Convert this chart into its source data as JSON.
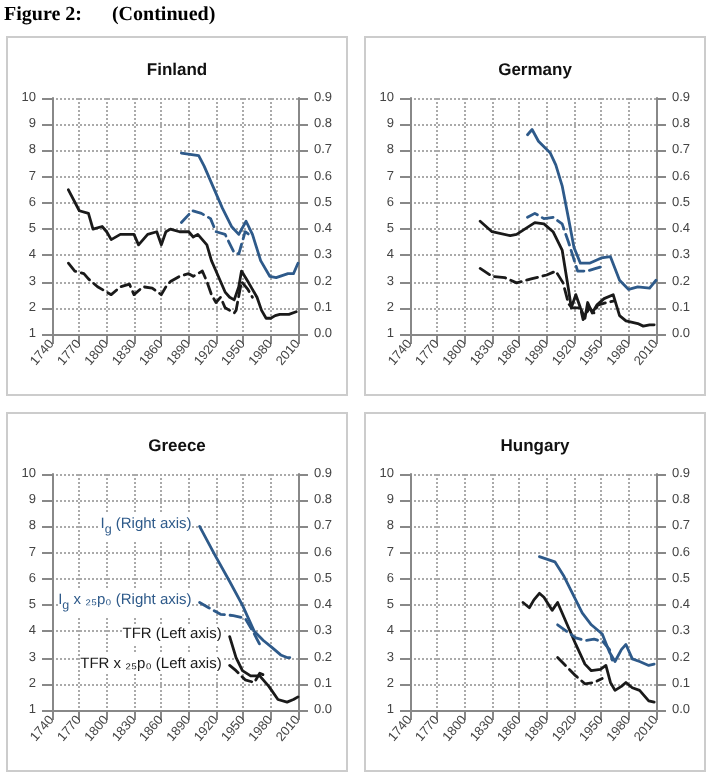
{
  "chart_data": [
    {
      "type": "line",
      "title": "Finland",
      "annotations": [
        "Figure 2:      (Continued)"
      ],
      "xlim": [
        1740,
        2010
      ],
      "xticks": [
        1740,
        1770,
        1800,
        1830,
        1860,
        1890,
        1920,
        1950,
        1980,
        2010
      ],
      "ylim": [
        1,
        10
      ],
      "yticks": [
        1,
        2,
        3,
        4,
        5,
        6,
        7,
        8,
        9,
        10
      ],
      "y2lim": [
        0,
        0.9
      ],
      "y2ticks": [
        {
          "value": 0,
          "label": "0.0"
        },
        {
          "value": 0.1,
          "label": "0.1"
        },
        {
          "value": 0.2,
          "label": "0.2"
        },
        {
          "value": 0.3,
          "label": "0.3"
        },
        {
          "value": 0.4,
          "label": "0.4"
        },
        {
          "value": 0.5,
          "label": "0.5"
        },
        {
          "value": 0.6,
          "label": "0.6"
        },
        {
          "value": 0.7,
          "label": "0.7"
        },
        {
          "value": 0.8,
          "label": "0.8"
        },
        {
          "value": 0.9,
          "label": "0.9"
        }
      ],
      "grid": true,
      "marker": "none",
      "series": [
        {
          "color": "#1a1a1a",
          "line_style": "solid",
          "x": [
            1758,
            1770,
            1780,
            1785,
            1795,
            1800,
            1805,
            1815,
            1830,
            1835,
            1845,
            1855,
            1860,
            1865,
            1870,
            1880,
            1890,
            1895,
            1900,
            1910,
            1915,
            1920,
            1925,
            1930,
            1935,
            1940,
            1945,
            1948,
            1955,
            1960,
            1965,
            1970,
            1975,
            1980,
            1985,
            1990,
            2000,
            2008
          ],
          "values": [
            6.5,
            5.7,
            5.6,
            5.0,
            5.1,
            4.9,
            4.6,
            4.8,
            4.8,
            4.4,
            4.8,
            4.9,
            4.4,
            4.9,
            5.0,
            4.9,
            4.9,
            4.7,
            4.8,
            4.4,
            3.8,
            3.4,
            3.0,
            2.6,
            2.4,
            2.3,
            2.8,
            3.4,
            3.0,
            2.7,
            2.4,
            1.9,
            1.6,
            1.6,
            1.7,
            1.75,
            1.75,
            1.85
          ]
        },
        {
          "color": "#1a1a1a",
          "line_style": "dashed",
          "x": [
            1758,
            1765,
            1775,
            1780,
            1790,
            1800,
            1805,
            1815,
            1825,
            1830,
            1840,
            1850,
            1860,
            1865,
            1870,
            1880,
            1890,
            1895,
            1905,
            1910,
            1915,
            1920,
            1925,
            1930,
            1940,
            1942,
            1948,
            1955,
            1960
          ],
          "values": [
            3.7,
            3.4,
            3.3,
            3.1,
            2.8,
            2.6,
            2.5,
            2.8,
            2.9,
            2.5,
            2.8,
            2.75,
            2.5,
            2.8,
            3.0,
            3.2,
            3.3,
            3.2,
            3.4,
            3.0,
            2.5,
            2.2,
            2.4,
            2.0,
            1.8,
            1.9,
            3.0,
            2.7,
            2.4
          ]
        },
        {
          "color": "#2e5a8a",
          "line_style": "solid",
          "axis": "y2",
          "x": [
            1882,
            1901,
            1907,
            1917,
            1927,
            1937,
            1945,
            1953,
            1960,
            1969,
            1979,
            1986,
            1999,
            2005,
            2010
          ],
          "values": [
            0.69,
            0.68,
            0.64,
            0.56,
            0.48,
            0.41,
            0.38,
            0.43,
            0.38,
            0.28,
            0.22,
            0.215,
            0.23,
            0.23,
            0.27
          ]
        },
        {
          "color": "#2e5a8a",
          "line_style": "dashed",
          "axis": "y2",
          "x": [
            1882,
            1894,
            1904,
            1914,
            1920,
            1930,
            1940,
            1945,
            1952,
            1956
          ],
          "values": [
            0.425,
            0.47,
            0.46,
            0.44,
            0.39,
            0.38,
            0.31,
            0.305,
            0.39,
            0.38
          ]
        }
      ]
    },
    {
      "type": "line",
      "title": "Germany",
      "xlim": [
        1740,
        2010
      ],
      "xticks": [
        1740,
        1770,
        1800,
        1830,
        1860,
        1890,
        1920,
        1950,
        1980,
        2010
      ],
      "ylim": [
        1,
        10
      ],
      "yticks": [
        1,
        2,
        3,
        4,
        5,
        6,
        7,
        8,
        9,
        10
      ],
      "y2lim": [
        0,
        0.9
      ],
      "y2ticks": [
        {
          "value": 0,
          "label": "0.0"
        },
        {
          "value": 0.1,
          "label": "0.1"
        },
        {
          "value": 0.2,
          "label": "0.2"
        },
        {
          "value": 0.3,
          "label": "0.3"
        },
        {
          "value": 0.4,
          "label": "0.4"
        },
        {
          "value": 0.5,
          "label": "0.5"
        },
        {
          "value": 0.6,
          "label": "0.6"
        },
        {
          "value": 0.7,
          "label": "0.7"
        },
        {
          "value": 0.8,
          "label": "0.8"
        },
        {
          "value": 0.9,
          "label": "0.9"
        }
      ],
      "grid": true,
      "marker": "none",
      "series": [
        {
          "color": "#1a1a1a",
          "line_style": "solid",
          "x": [
            1817,
            1830,
            1850,
            1857,
            1877,
            1887,
            1897,
            1907,
            1914,
            1917,
            1922,
            1927,
            1932,
            1935,
            1940,
            1945,
            1953,
            1963,
            1970,
            1977,
            1990,
            1996,
            2003,
            2008
          ],
          "values": [
            5.3,
            4.9,
            4.75,
            4.8,
            5.25,
            5.2,
            4.9,
            4.2,
            2.7,
            2.0,
            2.5,
            2.0,
            1.6,
            2.2,
            1.8,
            2.1,
            2.35,
            2.5,
            1.7,
            1.5,
            1.4,
            1.3,
            1.35,
            1.35
          ]
        },
        {
          "color": "#1a1a1a",
          "line_style": "dashed",
          "x": [
            1817,
            1830,
            1844,
            1857,
            1873,
            1890,
            1900,
            1908,
            1914,
            1918,
            1927,
            1930,
            1937,
            1942,
            1946,
            1956,
            1963
          ],
          "values": [
            3.5,
            3.2,
            3.15,
            2.95,
            3.1,
            3.25,
            3.4,
            2.95,
            2.15,
            2.0,
            2.0,
            1.55,
            2.0,
            1.8,
            2.1,
            2.2,
            2.25
          ]
        },
        {
          "color": "#2e5a8a",
          "line_style": "solid",
          "axis": "y2",
          "x": [
            1869,
            1874,
            1881,
            1894,
            1900,
            1907,
            1914,
            1920,
            1927,
            1937,
            1950,
            1960,
            1970,
            1980,
            1990,
            2003,
            2010
          ],
          "values": [
            0.76,
            0.78,
            0.735,
            0.69,
            0.645,
            0.565,
            0.44,
            0.33,
            0.27,
            0.27,
            0.29,
            0.295,
            0.205,
            0.17,
            0.18,
            0.175,
            0.205
          ]
        },
        {
          "color": "#2e5a8a",
          "line_style": "dashed",
          "axis": "y2",
          "x": [
            1869,
            1877,
            1887,
            1897,
            1907,
            1914,
            1924,
            1934,
            1944,
            1954
          ],
          "values": [
            0.445,
            0.46,
            0.44,
            0.445,
            0.42,
            0.35,
            0.24,
            0.24,
            0.25,
            0.26
          ]
        }
      ]
    },
    {
      "type": "line",
      "title": "Greece",
      "xlim": [
        1740,
        2010
      ],
      "xticks": [
        1740,
        1770,
        1800,
        1830,
        1860,
        1890,
        1920,
        1950,
        1980,
        2010
      ],
      "ylim": [
        1,
        10
      ],
      "yticks": [
        1,
        2,
        3,
        4,
        5,
        6,
        7,
        8,
        9,
        10
      ],
      "y2lim": [
        0,
        0.9
      ],
      "y2ticks": [
        {
          "value": 0,
          "label": "0.0"
        },
        {
          "value": 0.1,
          "label": "0.1"
        },
        {
          "value": 0.2,
          "label": "0.2"
        },
        {
          "value": 0.3,
          "label": "0.3"
        },
        {
          "value": 0.4,
          "label": "0.4"
        },
        {
          "value": 0.5,
          "label": "0.5"
        },
        {
          "value": 0.6,
          "label": "0.6"
        },
        {
          "value": 0.7,
          "label": "0.7"
        },
        {
          "value": 0.8,
          "label": "0.8"
        },
        {
          "value": 0.9,
          "label": "0.9"
        }
      ],
      "grid": true,
      "marker": "none",
      "series": [
        {
          "name": "TFR (Left axis)",
          "color": "#1a1a1a",
          "line_style": "solid",
          "x": [
            1935,
            1942,
            1949,
            1958,
            1968,
            1978,
            1988,
            1998,
            2005,
            2010
          ],
          "values": [
            3.8,
            3.0,
            2.5,
            2.3,
            2.3,
            1.9,
            1.4,
            1.3,
            1.4,
            1.5
          ]
        },
        {
          "name": "TFR x ₂₅p₀ (Left axis)",
          "color": "#1a1a1a",
          "line_style": "dashed",
          "x": [
            1935,
            1942,
            1952,
            1962,
            1968,
            1975
          ],
          "values": [
            2.7,
            2.5,
            2.15,
            2.05,
            2.4,
            2.3
          ]
        },
        {
          "name": "I$_{g}$ (Right axis)",
          "color": "#2e5a8a",
          "line_style": "solid",
          "axis": "y2",
          "x": [
            1902,
            1919,
            1935,
            1949,
            1962,
            1972,
            1981,
            1991,
            1998,
            2001
          ],
          "values": [
            0.7,
            0.59,
            0.49,
            0.4,
            0.3,
            0.265,
            0.24,
            0.21,
            0.2,
            0.2
          ]
        },
        {
          "name": "I$_{g}$ x ₂₅p₀ (Right axis)",
          "color": "#2e5a8a",
          "line_style": "dashed",
          "axis": "y2",
          "x": [
            1902,
            1912,
            1925,
            1939,
            1952,
            1962,
            1968
          ],
          "values": [
            0.41,
            0.39,
            0.365,
            0.36,
            0.35,
            0.29,
            0.25
          ]
        }
      ]
    },
    {
      "type": "line",
      "title": "Hungary",
      "xlim": [
        1740,
        2010
      ],
      "xticks": [
        1740,
        1770,
        1800,
        1830,
        1860,
        1890,
        1920,
        1950,
        1980,
        2010
      ],
      "ylim": [
        1,
        10
      ],
      "yticks": [
        1,
        2,
        3,
        4,
        5,
        6,
        7,
        8,
        9,
        10
      ],
      "y2lim": [
        0,
        0.9
      ],
      "y2ticks": [
        {
          "value": 0,
          "label": "0.0"
        },
        {
          "value": 0.1,
          "label": "0.1"
        },
        {
          "value": 0.2,
          "label": "0.2"
        },
        {
          "value": 0.3,
          "label": "0.3"
        },
        {
          "value": 0.4,
          "label": "0.4"
        },
        {
          "value": 0.5,
          "label": "0.5"
        },
        {
          "value": 0.6,
          "label": "0.6"
        },
        {
          "value": 0.7,
          "label": "0.7"
        },
        {
          "value": 0.8,
          "label": "0.8"
        },
        {
          "value": 0.9,
          "label": "0.9"
        }
      ],
      "grid": true,
      "marker": "none",
      "series": [
        {
          "color": "#1a1a1a",
          "line_style": "solid",
          "x": [
            1864,
            1871,
            1876,
            1882,
            1887,
            1896,
            1902,
            1912,
            1922,
            1932,
            1939,
            1949,
            1955,
            1960,
            1965,
            1972,
            1977,
            1984,
            1992,
            2002,
            2008
          ],
          "values": [
            5.1,
            4.9,
            5.2,
            5.45,
            5.3,
            4.8,
            5.1,
            4.3,
            3.5,
            2.75,
            2.5,
            2.55,
            2.7,
            2.05,
            1.75,
            1.9,
            2.05,
            1.85,
            1.75,
            1.35,
            1.3
          ]
        },
        {
          "color": "#1a1a1a",
          "line_style": "dashed",
          "x": [
            1902,
            1912,
            1922,
            1932,
            1942,
            1951
          ],
          "values": [
            3.0,
            2.65,
            2.3,
            2.0,
            2.05,
            2.2
          ]
        },
        {
          "color": "#2e5a8a",
          "line_style": "solid",
          "axis": "y2",
          "x": [
            1882,
            1899,
            1909,
            1919,
            1929,
            1939,
            1951,
            1959,
            1965,
            1972,
            1977,
            1984,
            1992,
            2002,
            2008
          ],
          "values": [
            0.585,
            0.565,
            0.51,
            0.44,
            0.37,
            0.325,
            0.29,
            0.22,
            0.185,
            0.23,
            0.25,
            0.195,
            0.185,
            0.17,
            0.175
          ]
        },
        {
          "color": "#2e5a8a",
          "line_style": "dashed",
          "axis": "y2",
          "x": [
            1902,
            1912,
            1922,
            1932,
            1942,
            1952,
            1959,
            1962
          ],
          "values": [
            0.325,
            0.3,
            0.275,
            0.265,
            0.27,
            0.26,
            0.23,
            0.19
          ]
        }
      ]
    }
  ]
}
